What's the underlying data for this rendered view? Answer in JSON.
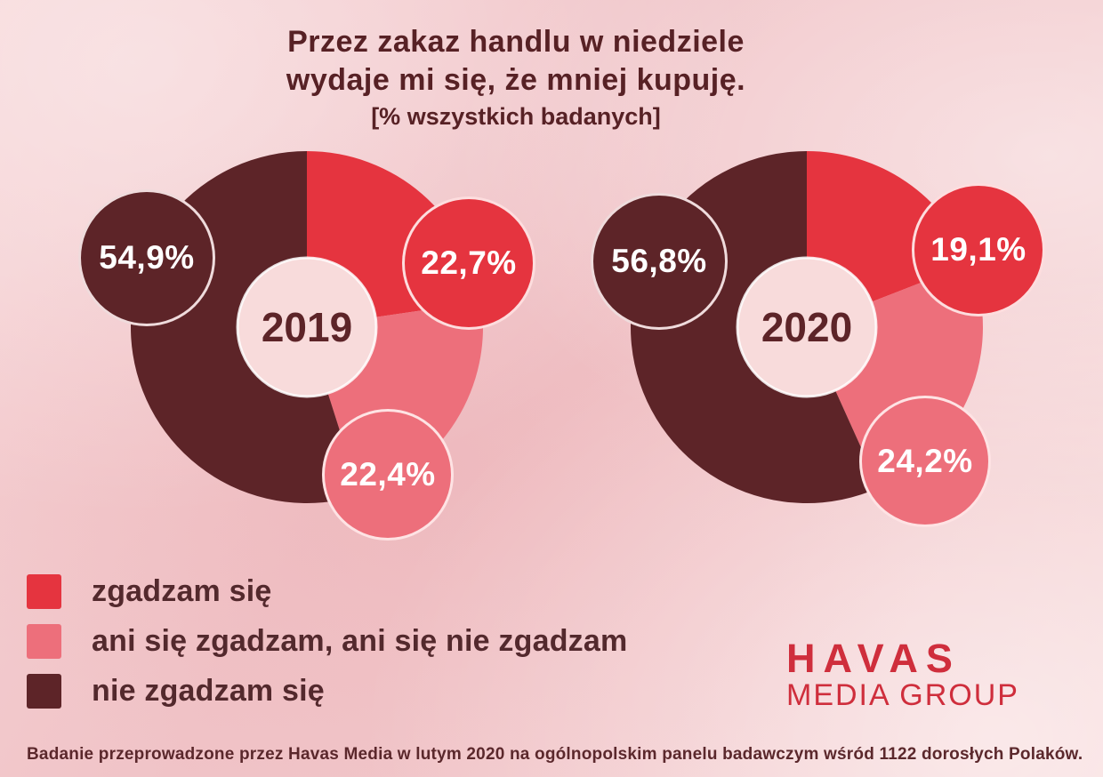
{
  "title": {
    "line1": "Przez zakaz handlu w niedziele",
    "line2": "wydaje mi się, że mniej kupuję.",
    "subtitle": "[% wszystkich badanych]"
  },
  "colors": {
    "agree": "#e5343f",
    "neutral": "#ed6f7b",
    "disagree": "#5d2428",
    "center": "#f8dbdb",
    "title_text": "#572125",
    "logo_red": "#cf2e3c"
  },
  "chart_data": [
    {
      "type": "pie",
      "donut": true,
      "title": "2019",
      "labels": [
        "zgadzam się",
        "ani się zgadzam, ani się nie zgadzam",
        "nie zgadzam się"
      ],
      "values": [
        22.7,
        22.4,
        54.9
      ],
      "slices": [
        {
          "label": "zgadzam się",
          "value": 22.7,
          "display": "22,7%",
          "color_key": "agree"
        },
        {
          "label": "ani się zgadzam, ani się nie zgadzam",
          "value": 22.4,
          "display": "22,4%",
          "color_key": "neutral"
        },
        {
          "label": "nie zgadzam się",
          "value": 54.9,
          "display": "54,9%",
          "color_key": "disagree"
        }
      ]
    },
    {
      "type": "pie",
      "donut": true,
      "title": "2020",
      "labels": [
        "zgadzam się",
        "ani się zgadzam, ani się nie zgadzam",
        "nie zgadzam się"
      ],
      "values": [
        19.1,
        24.2,
        56.8
      ],
      "slices": [
        {
          "label": "zgadzam się",
          "value": 19.1,
          "display": "19,1%",
          "color_key": "agree"
        },
        {
          "label": "ani się zgadzam, ani się nie zgadzam",
          "value": 24.2,
          "display": "24,2%",
          "color_key": "neutral"
        },
        {
          "label": "nie zgadzam się",
          "value": 56.8,
          "display": "56,8%",
          "color_key": "disagree"
        }
      ]
    }
  ],
  "legend": [
    {
      "label": "zgadzam się",
      "color_key": "agree"
    },
    {
      "label": "ani się zgadzam, ani się nie zgadzam",
      "color_key": "neutral"
    },
    {
      "label": "nie zgadzam się",
      "color_key": "disagree"
    }
  ],
  "logo": {
    "line1": "HAVAS",
    "line2": "MEDIA GROUP"
  },
  "footer": "Badanie przeprowadzone przez Havas Media w lutym 2020 na ogólnopolskim panelu badawczym wśród 1122 dorosłych Polaków."
}
